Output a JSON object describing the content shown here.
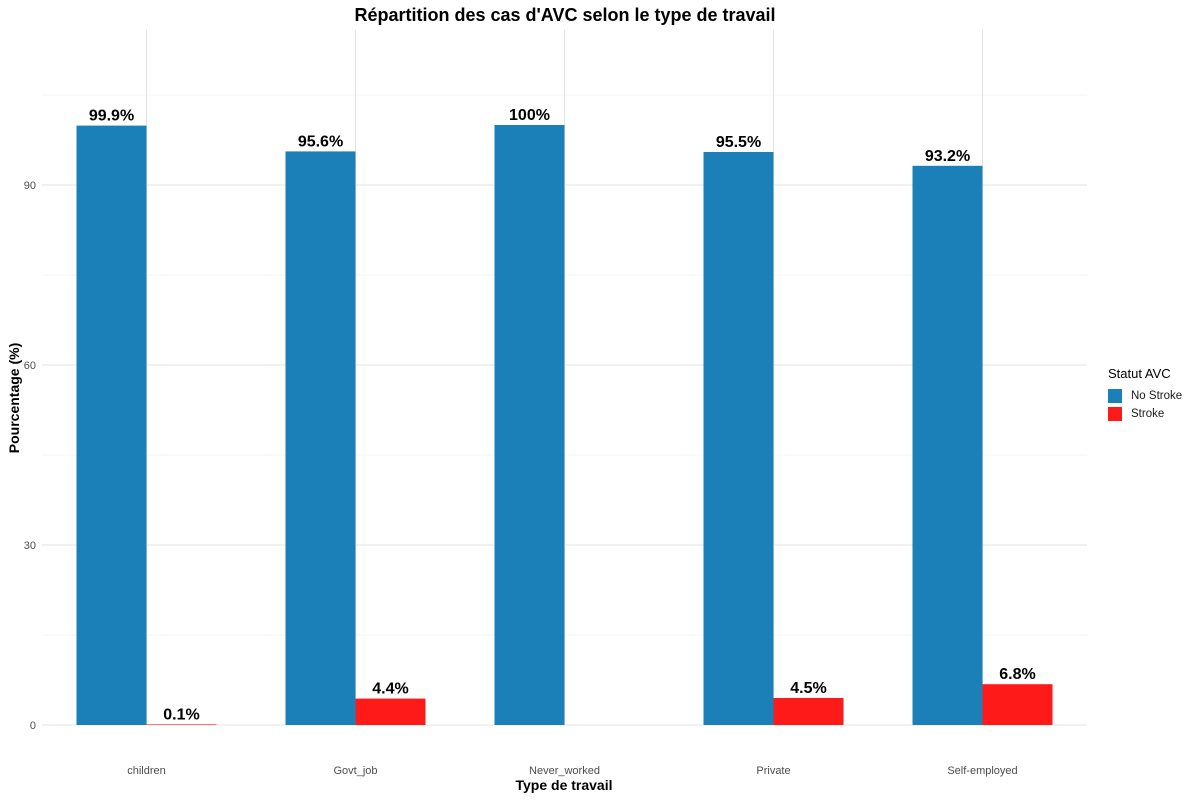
{
  "chart_data": {
    "type": "bar",
    "title": "Répartition des cas d'AVC selon le type de travail",
    "xlabel": "Type de travail",
    "ylabel": "Pourcentage (%)",
    "categories": [
      "children",
      "Govt_job",
      "Never_worked",
      "Private",
      "Self-employed"
    ],
    "series": [
      {
        "name": "No Stroke",
        "color": "#1B80B8",
        "values": [
          99.9,
          95.6,
          100,
          95.5,
          93.2
        ],
        "labels": [
          "99.9%",
          "95.6%",
          "100%",
          "95.5%",
          "93.2%"
        ]
      },
      {
        "name": "Stroke",
        "color": "#FF1A1A",
        "values": [
          0.1,
          4.4,
          null,
          4.5,
          6.8
        ],
        "labels": [
          "0.1%",
          "4.4%",
          "",
          "4.5%",
          "6.8%"
        ]
      }
    ],
    "yticks": [
      0,
      30,
      60,
      90
    ],
    "ylim": [
      0,
      110
    ],
    "grid": true,
    "legend": {
      "title": "Statut AVC",
      "position": "right"
    }
  }
}
